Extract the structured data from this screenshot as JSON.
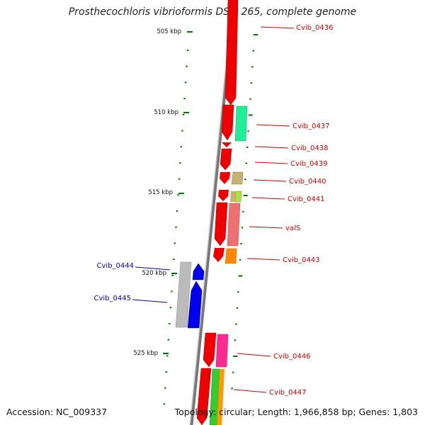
{
  "title": "Prosthecochloris vibrioformis DSM 265, complete genome",
  "footer": {
    "accession": "Accession: NC_009337",
    "topology": "Topology: circular; Length: 1,966,858 bp; Genes: 1,803"
  },
  "scale_labels": [
    {
      "label": "505 kbp",
      "kbp": 505
    },
    {
      "label": "510 kbp",
      "kbp": 510
    },
    {
      "label": "515 kbp",
      "kbp": 515
    },
    {
      "label": "520 kbp",
      "kbp": 520
    },
    {
      "label": "525 kbp",
      "kbp": 525
    }
  ],
  "genes_right": [
    {
      "name": "Cvib_0436",
      "color": "#ee0000"
    },
    {
      "name": "Cvib_0437",
      "color": "#22ee99"
    },
    {
      "name": "Cvib_0438",
      "color": "#ee0000"
    },
    {
      "name": "Cvib_0439",
      "color": "#ee0000"
    },
    {
      "name": "Cvib_0440",
      "color": "#c8b070"
    },
    {
      "name": "Cvib_0441",
      "color": "#a8e040"
    },
    {
      "name": "valS",
      "color": "#ee7070"
    },
    {
      "name": "Cvib_0443",
      "color": "#ff8800"
    },
    {
      "name": "Cvib_0446",
      "color": "#ff2a90"
    },
    {
      "name": "Cvib_0447",
      "color": "#33cc33"
    }
  ],
  "genes_left": [
    {
      "name": "Cvib_0444",
      "color": "#0000ee"
    },
    {
      "name": "Cvib_0445",
      "color": "#0000ee"
    }
  ],
  "colors": {
    "backbone": "#888888",
    "tick": "#007700",
    "right_label": "#cc0000",
    "left_label": "#0000bb",
    "reverse_strand_gene": "#bbbbbb"
  }
}
